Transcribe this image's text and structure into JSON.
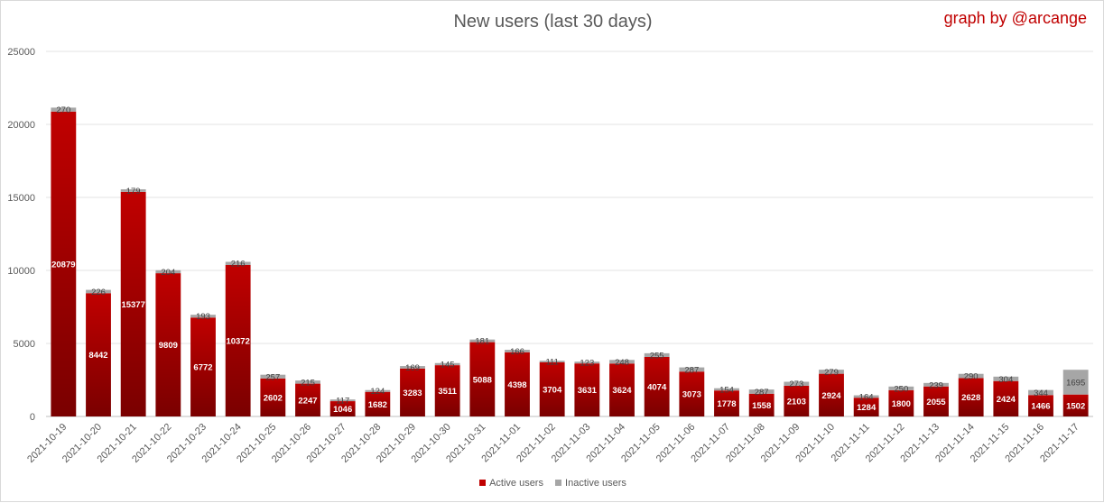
{
  "chart_data": {
    "type": "bar",
    "stacked": true,
    "title": "New users (last 30 days)",
    "credit": "graph by @arcange",
    "xlabel": "",
    "ylabel": "",
    "ylim": [
      0,
      25000
    ],
    "yticks": [
      0,
      5000,
      10000,
      15000,
      20000,
      25000
    ],
    "grid": true,
    "legend_position": "bottom",
    "categories": [
      "2021-10-19",
      "2021-10-20",
      "2021-10-21",
      "2021-10-22",
      "2021-10-23",
      "2021-10-24",
      "2021-10-25",
      "2021-10-26",
      "2021-10-27",
      "2021-10-28",
      "2021-10-29",
      "2021-10-30",
      "2021-10-31",
      "2021-11-01",
      "2021-11-02",
      "2021-11-03",
      "2021-11-04",
      "2021-11-05",
      "2021-11-06",
      "2021-11-07",
      "2021-11-08",
      "2021-11-09",
      "2021-11-10",
      "2021-11-11",
      "2021-11-12",
      "2021-11-13",
      "2021-11-14",
      "2021-11-15",
      "2021-11-16",
      "2021-11-17"
    ],
    "series": [
      {
        "name": "Active users",
        "color": "#c00000",
        "values": [
          20879,
          8442,
          15377,
          9809,
          6772,
          10372,
          2602,
          2247,
          1046,
          1682,
          3283,
          3511,
          5088,
          4398,
          3704,
          3631,
          3624,
          4074,
          3073,
          1778,
          1558,
          2103,
          2924,
          1284,
          1800,
          2055,
          2628,
          2424,
          1466,
          1502
        ]
      },
      {
        "name": "Inactive users",
        "color": "#a6a6a6",
        "values": [
          270,
          226,
          179,
          204,
          193,
          216,
          257,
          215,
          117,
          124,
          169,
          145,
          181,
          166,
          111,
          123,
          248,
          255,
          287,
          154,
          287,
          273,
          279,
          164,
          250,
          239,
          290,
          304,
          344,
          1695
        ]
      }
    ]
  }
}
